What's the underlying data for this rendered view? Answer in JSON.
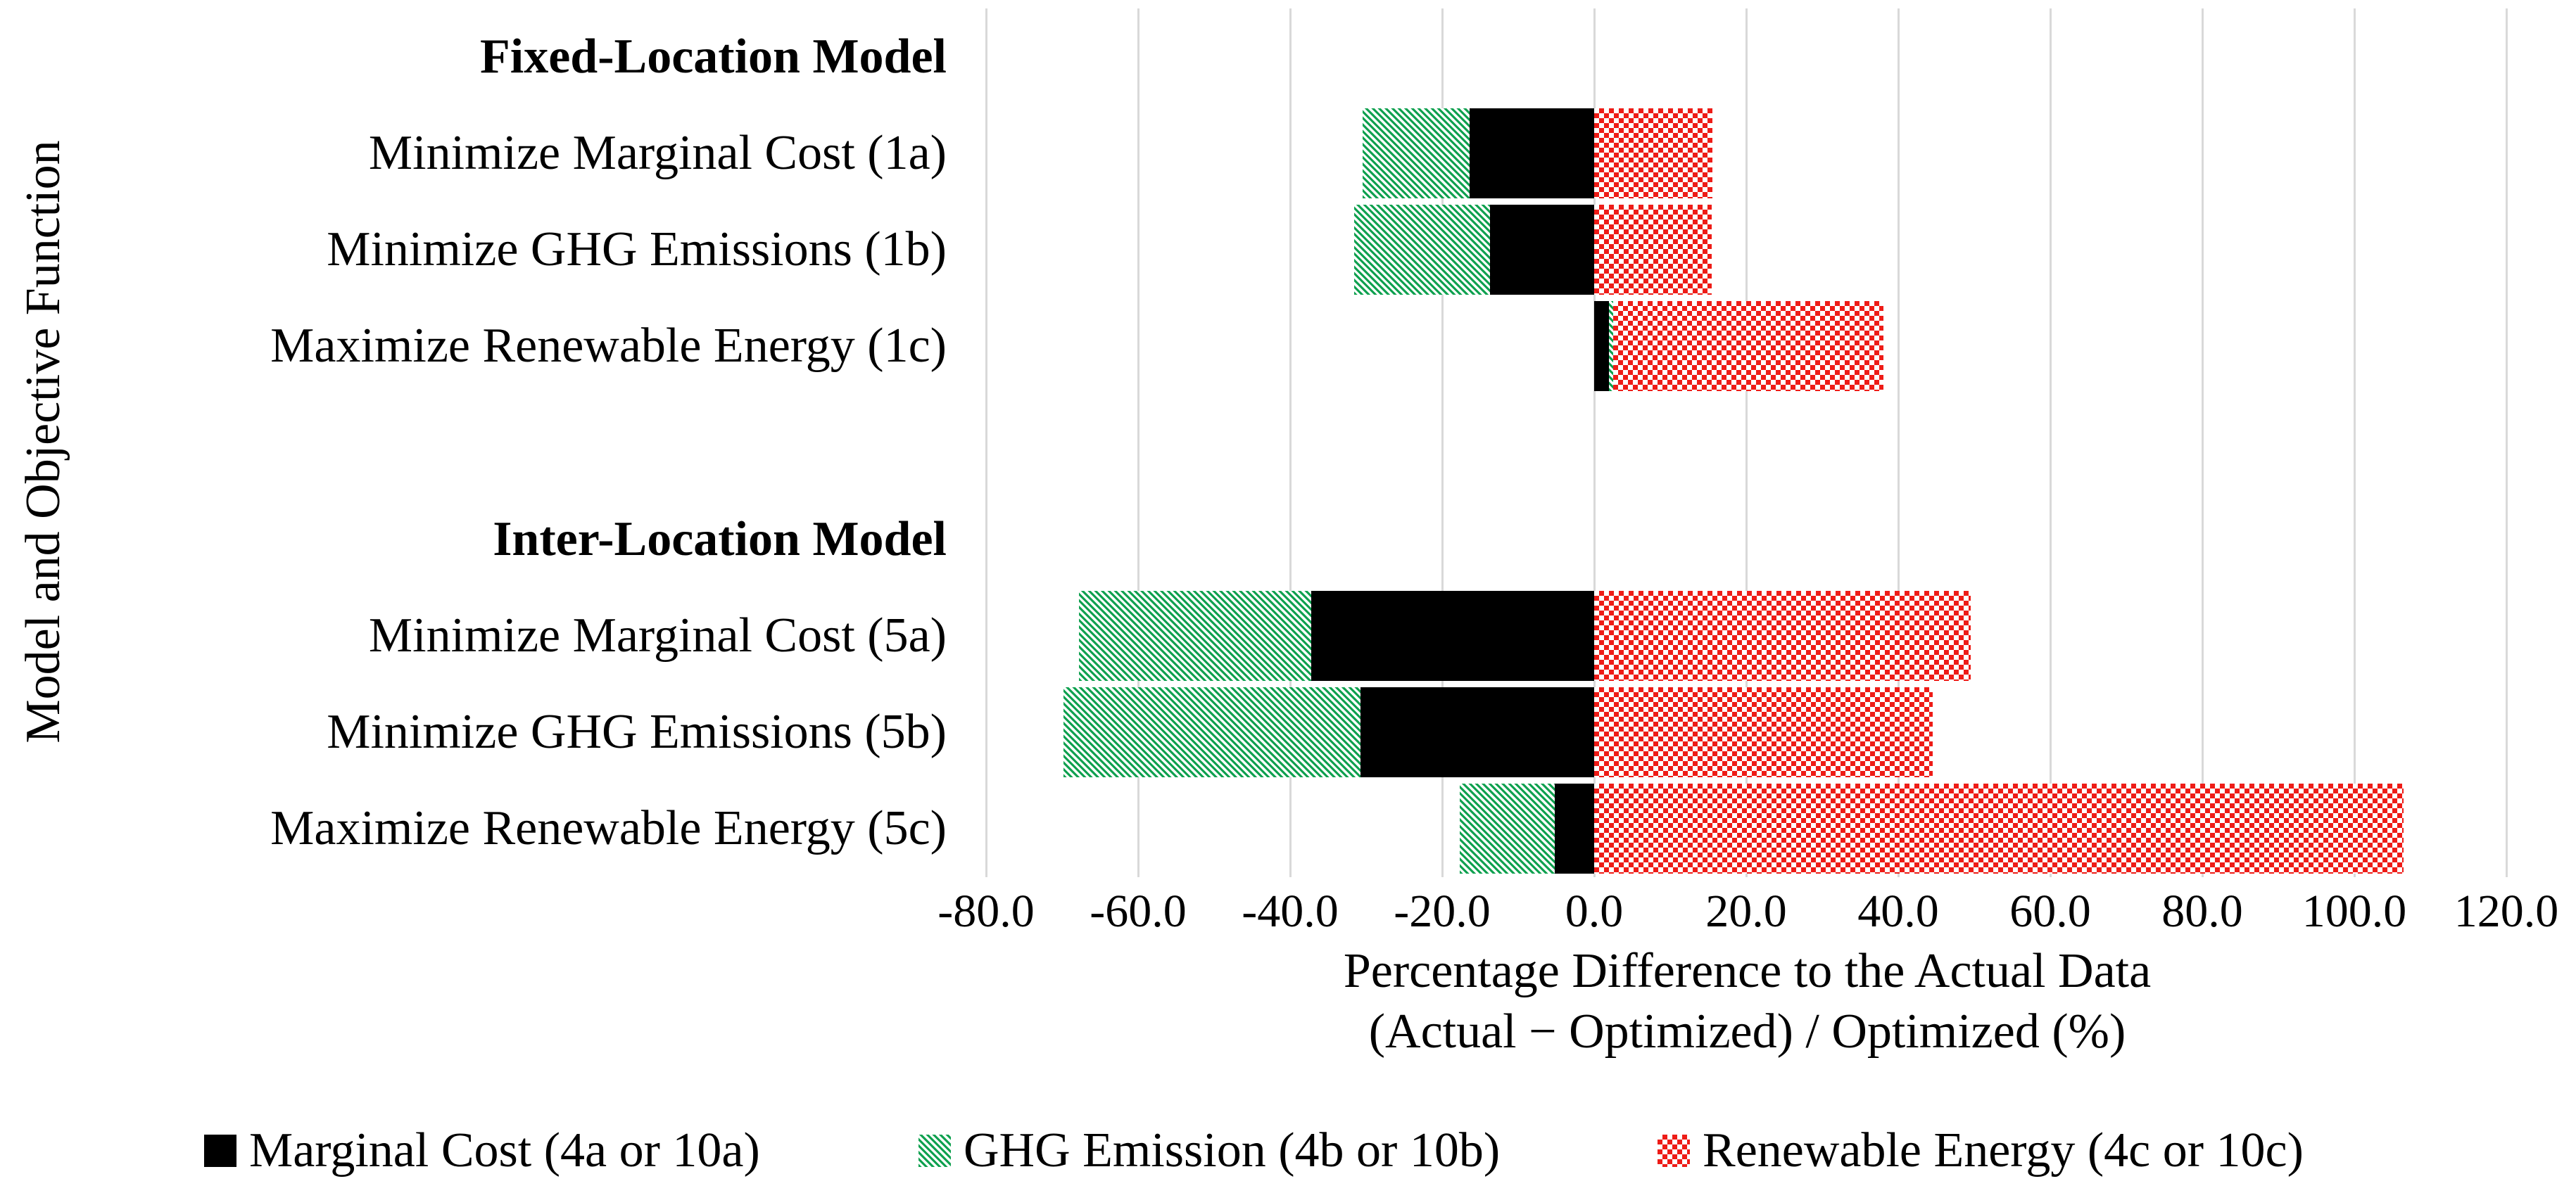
{
  "figure": {
    "background": "#ffffff",
    "gridline_color": "#D9D9D9",
    "text_color": "#000000"
  },
  "chart_data": {
    "type": "bar",
    "orientation": "horizontal",
    "stacked": true,
    "grid": true,
    "title": "",
    "xlabel_line1": "Percentage Difference to the Actual Data",
    "xlabel_line2": "(Actual − Optimized) / Optimized (%)",
    "ylabel": "Model and Objective Function",
    "xlim": [
      -80,
      120
    ],
    "xticks": [
      {
        "value": -80,
        "label": "-80.0"
      },
      {
        "value": -60,
        "label": "-60.0"
      },
      {
        "value": -40,
        "label": "-40.0"
      },
      {
        "value": -20,
        "label": "-20.0"
      },
      {
        "value": 0,
        "label": "0.0"
      },
      {
        "value": 20,
        "label": "20.0"
      },
      {
        "value": 40,
        "label": "40.0"
      },
      {
        "value": 60,
        "label": "60.0"
      },
      {
        "value": 80,
        "label": "80.0"
      },
      {
        "value": 100,
        "label": "100.0"
      },
      {
        "value": 120,
        "label": "120.0"
      }
    ],
    "categories": [
      {
        "label": "Fixed-Location Model",
        "style": "group-header"
      },
      {
        "label": "Minimize Marginal Cost (1a)",
        "style": "item"
      },
      {
        "label": "Minimize GHG Emissions (1b)",
        "style": "item"
      },
      {
        "label": "Maximize Renewable Energy (1c)",
        "style": "item"
      },
      {
        "label": "",
        "style": "spacer"
      },
      {
        "label": "Inter-Location Model",
        "style": "group-header"
      },
      {
        "label": "Minimize Marginal Cost (5a)",
        "style": "item"
      },
      {
        "label": "Minimize GHG Emissions (5b)",
        "style": "item"
      },
      {
        "label": "Maximize Renewable Energy (5c)",
        "style": "item"
      }
    ],
    "series": [
      {
        "name": "Marginal Cost (4a or 10a)",
        "pattern": "solid",
        "color": "#000000",
        "values": [
          null,
          -16.4,
          -13.7,
          1.9,
          null,
          null,
          -37.2,
          -30.7,
          -5.2
        ]
      },
      {
        "name": "GHG Emission (4b or 10b)",
        "pattern": "diagonal-hatch",
        "color": "#10A150",
        "values": [
          null,
          -14.1,
          -17.9,
          0.6,
          null,
          null,
          -30.6,
          -39.1,
          -12.5
        ]
      },
      {
        "name": "Renewable Energy (4c or 10c)",
        "pattern": "checker",
        "color": "#EE1C17",
        "values": [
          null,
          15.6,
          15.5,
          35.6,
          null,
          null,
          49.5,
          44.5,
          106.5
        ]
      }
    ],
    "legend_position": "bottom"
  }
}
